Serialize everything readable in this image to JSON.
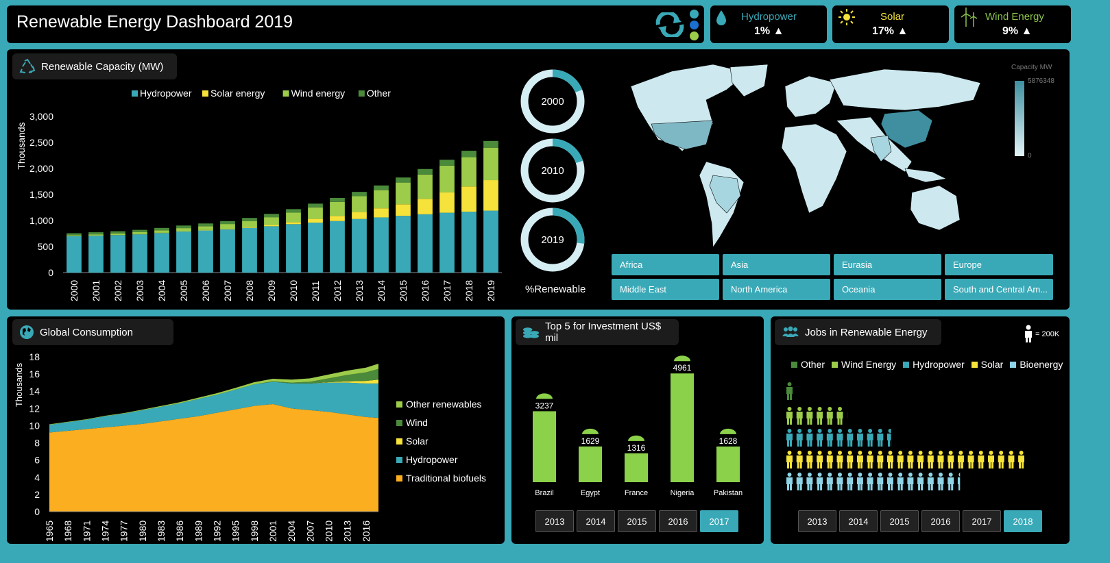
{
  "header": {
    "title": "Renewable Energy Dashboard 2019"
  },
  "kpis": [
    {
      "label": "Hydropower",
      "value": "1%",
      "color": "#3aa9b7",
      "icon": "water-drop-icon"
    },
    {
      "label": "Solar",
      "value": "17%",
      "color": "#f5e23a",
      "icon": "sun-icon"
    },
    {
      "label": "Wind Energy",
      "value": "9%",
      "color": "#8bc34a",
      "icon": "wind-turbine-icon"
    }
  ],
  "capacity": {
    "title": "Renewable Capacity (MW)",
    "chart_data": {
      "type": "bar",
      "stacked": true,
      "categories": [
        "2000",
        "2001",
        "2002",
        "2003",
        "2004",
        "2005",
        "2006",
        "2007",
        "2008",
        "2009",
        "2010",
        "2011",
        "2012",
        "2013",
        "2014",
        "2015",
        "2016",
        "2017",
        "2018",
        "2019"
      ],
      "ylabel": "Thousands",
      "ylim": [
        0,
        3000
      ],
      "yticks": [
        "0",
        "500",
        "1,000",
        "1,500",
        "2,000",
        "2,500",
        "3,000"
      ],
      "series": [
        {
          "name": "Hydropower",
          "color": "#3aa9b7",
          "values": [
            700,
            710,
            720,
            735,
            760,
            790,
            810,
            830,
            860,
            890,
            930,
            960,
            990,
            1030,
            1060,
            1090,
            1120,
            1150,
            1170,
            1190
          ]
        },
        {
          "name": "Solar energy",
          "color": "#f5e23a",
          "values": [
            1,
            1,
            2,
            3,
            4,
            5,
            7,
            9,
            15,
            24,
            40,
            72,
            100,
            137,
            175,
            222,
            297,
            390,
            485,
            586
          ]
        },
        {
          "name": "Wind energy",
          "color": "#9ccc4a",
          "values": [
            17,
            24,
            31,
            39,
            48,
            59,
            74,
            94,
            115,
            150,
            181,
            221,
            267,
            300,
            349,
            417,
            467,
            514,
            564,
            623
          ]
        },
        {
          "name": "Other",
          "color": "#4a8a3a",
          "values": [
            38,
            40,
            42,
            44,
            46,
            50,
            53,
            56,
            60,
            64,
            68,
            72,
            78,
            84,
            90,
            98,
            106,
            114,
            122,
            130
          ]
        }
      ]
    }
  },
  "donuts": {
    "items": [
      {
        "year": "2000",
        "value": 0.19
      },
      {
        "year": "2010",
        "value": 0.2
      },
      {
        "year": "2019",
        "value": 0.27
      }
    ],
    "label": "%Renewable"
  },
  "map": {
    "legend_title": "Capacity MW",
    "legend_max": "5876348",
    "legend_min": "0",
    "regions": [
      "Africa",
      "Asia",
      "Eurasia",
      "Europe",
      "Middle East",
      "North America",
      "Oceania",
      "South and Central Am..."
    ]
  },
  "consumption": {
    "title": "Global Consumption",
    "chart_data": {
      "type": "area",
      "ylabel": "Thousands",
      "ylim": [
        0,
        18
      ],
      "yticks": [
        "0",
        "2",
        "4",
        "6",
        "8",
        "10",
        "12",
        "14",
        "16",
        "18"
      ],
      "xticks": [
        "1965",
        "1968",
        "1971",
        "1974",
        "1977",
        "1980",
        "1983",
        "1986",
        "1989",
        "1992",
        "1995",
        "1998",
        "2001",
        "2004",
        "2007",
        "2010",
        "2013",
        "2016"
      ],
      "x": [
        1965,
        1968,
        1971,
        1974,
        1977,
        1980,
        1983,
        1986,
        1989,
        1992,
        1995,
        1998,
        2001,
        2004,
        2007,
        2010,
        2013,
        2016,
        2018
      ],
      "series": [
        {
          "name": "Traditional biofuels",
          "color": "#fbae20",
          "values": [
            9.2,
            9.4,
            9.6,
            9.8,
            10.0,
            10.2,
            10.5,
            10.8,
            11.1,
            11.5,
            11.9,
            12.3,
            12.5,
            12.0,
            11.8,
            11.6,
            11.3,
            11.0,
            10.9
          ]
        },
        {
          "name": "Hydropower",
          "color": "#3aa9b7",
          "values": [
            0.9,
            1.0,
            1.1,
            1.3,
            1.4,
            1.6,
            1.7,
            1.8,
            2.0,
            2.1,
            2.3,
            2.5,
            2.6,
            2.9,
            3.1,
            3.4,
            3.7,
            3.9,
            4.0
          ]
        },
        {
          "name": "Solar",
          "color": "#f5e23a",
          "values": [
            0,
            0,
            0,
            0,
            0,
            0,
            0,
            0,
            0,
            0,
            0,
            0,
            0,
            0,
            0,
            0.05,
            0.15,
            0.3,
            0.45
          ]
        },
        {
          "name": "Wind",
          "color": "#4a8a3a",
          "values": [
            0,
            0,
            0,
            0,
            0,
            0,
            0,
            0,
            0,
            0,
            0,
            0,
            0.05,
            0.1,
            0.2,
            0.45,
            0.75,
            1.0,
            1.25
          ]
        },
        {
          "name": "Other renewables",
          "color": "#9ccc4a",
          "values": [
            0.05,
            0.05,
            0.05,
            0.05,
            0.06,
            0.07,
            0.1,
            0.12,
            0.15,
            0.18,
            0.2,
            0.25,
            0.3,
            0.35,
            0.4,
            0.45,
            0.5,
            0.55,
            0.6
          ]
        }
      ],
      "legend_order": [
        "Other renewables",
        "Wind",
        "Solar",
        "Hydropower",
        "Traditional biofuels"
      ]
    }
  },
  "investment": {
    "title": "Top 5 for Investment US$ mil",
    "chart_data": {
      "type": "bar",
      "categories": [
        "Brazil",
        "Egypt",
        "France",
        "Nigeria",
        "Pakistan"
      ],
      "values": [
        3237,
        1629,
        1316,
        4961,
        1628
      ],
      "color": "#8bd14a"
    },
    "years": [
      "2013",
      "2014",
      "2015",
      "2016",
      "2017"
    ],
    "active_year": "2017"
  },
  "jobs": {
    "title": "Jobs in Renewable Energy",
    "unit_label": "= 200K",
    "legend": [
      {
        "name": "Other",
        "color": "#4a8a3a"
      },
      {
        "name": "Wind Energy",
        "color": "#9ccc4a"
      },
      {
        "name": "Hydropower",
        "color": "#3aa9b7"
      },
      {
        "name": "Solar",
        "color": "#f5e23a"
      },
      {
        "name": "Bioenergy",
        "color": "#8ed3e6"
      }
    ],
    "chart_data": {
      "type": "bar",
      "orientation": "horizontal",
      "categories": [
        "Other",
        "Wind Energy",
        "Hydropower",
        "Solar",
        "Bioenergy"
      ],
      "values": [
        1,
        6.1,
        10.6,
        23.9,
        17.4
      ],
      "unit": "200K jobs per figure"
    },
    "years": [
      "2013",
      "2014",
      "2015",
      "2016",
      "2017",
      "2018"
    ],
    "active_year": "2018"
  }
}
